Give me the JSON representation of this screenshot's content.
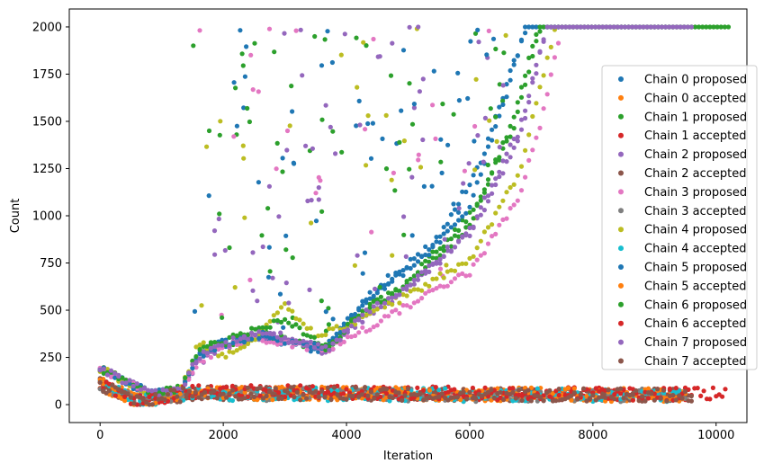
{
  "chart_data": {
    "type": "scatter",
    "xlabel": "Iteration",
    "ylabel": "Count",
    "xlim": [
      -500,
      10500
    ],
    "ylim": [
      -95,
      2095
    ],
    "x_ticks": [
      0,
      2000,
      4000,
      6000,
      8000,
      10000
    ],
    "y_ticks": [
      0,
      250,
      500,
      750,
      1000,
      1250,
      1500,
      1750,
      2000
    ],
    "x_tick_labels": [
      "0",
      "2000",
      "4000",
      "6000",
      "8000",
      "10000"
    ],
    "y_tick_labels": [
      "0",
      "250",
      "500",
      "750",
      "1000",
      "1250",
      "1500",
      "1750",
      "2000"
    ],
    "grid": false,
    "legend_position": "right",
    "series": [
      {
        "name": "Chain 0 proposed",
        "color": "#1f77b4",
        "kind": "proposed",
        "trend": [
          [
            0,
            190
          ],
          [
            800,
            60
          ],
          [
            1300,
            70
          ],
          [
            1600,
            250
          ],
          [
            2000,
            320
          ],
          [
            2500,
            350
          ],
          [
            3000,
            330
          ],
          [
            3500,
            290
          ],
          [
            3800,
            360
          ],
          [
            4500,
            600
          ],
          [
            5500,
            880
          ],
          [
            6200,
            1300
          ],
          [
            6700,
            1800
          ],
          [
            6950,
            2000
          ],
          [
            9500,
            2000
          ]
        ]
      },
      {
        "name": "Chain 0 accepted",
        "color": "#ff7f0e",
        "kind": "accepted",
        "trend": [
          [
            0,
            110
          ],
          [
            600,
            20
          ],
          [
            1500,
            60
          ],
          [
            3000,
            60
          ],
          [
            6000,
            55
          ],
          [
            9500,
            50
          ]
        ]
      },
      {
        "name": "Chain 1 proposed",
        "color": "#2ca02c",
        "kind": "proposed",
        "trend": [
          [
            0,
            190
          ],
          [
            800,
            60
          ],
          [
            1300,
            80
          ],
          [
            1600,
            300
          ],
          [
            2000,
            320
          ],
          [
            2600,
            380
          ],
          [
            3000,
            340
          ],
          [
            3700,
            300
          ],
          [
            4200,
            480
          ],
          [
            5000,
            650
          ],
          [
            6000,
            1000
          ],
          [
            6700,
            1450
          ],
          [
            7150,
            2000
          ],
          [
            10150,
            2000
          ]
        ]
      },
      {
        "name": "Chain 1 accepted",
        "color": "#d62728",
        "kind": "accepted",
        "trend": [
          [
            0,
            110
          ],
          [
            600,
            20
          ],
          [
            1500,
            70
          ],
          [
            3000,
            65
          ],
          [
            6000,
            60
          ],
          [
            9500,
            55
          ]
        ]
      },
      {
        "name": "Chain 2 proposed",
        "color": "#9467bd",
        "kind": "proposed",
        "trend": [
          [
            0,
            195
          ],
          [
            800,
            60
          ],
          [
            1300,
            75
          ],
          [
            1600,
            220
          ],
          [
            2000,
            310
          ],
          [
            2500,
            360
          ],
          [
            3000,
            340
          ],
          [
            3700,
            280
          ],
          [
            4200,
            440
          ],
          [
            5000,
            620
          ],
          [
            6000,
            900
          ],
          [
            6800,
            1400
          ],
          [
            7250,
            2000
          ],
          [
            9600,
            2000
          ]
        ]
      },
      {
        "name": "Chain 2 accepted",
        "color": "#8c564b",
        "kind": "accepted",
        "trend": [
          [
            0,
            105
          ],
          [
            600,
            15
          ],
          [
            1500,
            60
          ],
          [
            3000,
            60
          ],
          [
            6000,
            55
          ],
          [
            9600,
            50
          ]
        ]
      },
      {
        "name": "Chain 3 proposed",
        "color": "#e377c2",
        "kind": "proposed",
        "trend": [
          [
            0,
            190
          ],
          [
            800,
            60
          ],
          [
            1300,
            70
          ],
          [
            1600,
            230
          ],
          [
            2000,
            300
          ],
          [
            2500,
            350
          ],
          [
            3000,
            330
          ],
          [
            3700,
            290
          ],
          [
            4300,
            400
          ],
          [
            5000,
            520
          ],
          [
            6000,
            700
          ],
          [
            6800,
            1100
          ],
          [
            7200,
            1550
          ],
          [
            7500,
            2000
          ],
          [
            9500,
            2000
          ]
        ]
      },
      {
        "name": "Chain 3 accepted",
        "color": "#7f7f7f",
        "kind": "accepted",
        "trend": [
          [
            0,
            105
          ],
          [
            600,
            15
          ],
          [
            1500,
            55
          ],
          [
            3000,
            55
          ],
          [
            6000,
            50
          ],
          [
            9500,
            50
          ]
        ]
      },
      {
        "name": "Chain 4 proposed",
        "color": "#bcbd22",
        "kind": "proposed",
        "trend": [
          [
            0,
            190
          ],
          [
            800,
            60
          ],
          [
            1300,
            70
          ],
          [
            1600,
            330
          ],
          [
            2000,
            260
          ],
          [
            2400,
            320
          ],
          [
            3000,
            540
          ],
          [
            3500,
            360
          ],
          [
            4000,
            420
          ],
          [
            5000,
            580
          ],
          [
            6000,
            770
          ],
          [
            6800,
            1220
          ],
          [
            7150,
            1700
          ],
          [
            7400,
            2000
          ],
          [
            9500,
            2000
          ]
        ]
      },
      {
        "name": "Chain 4 accepted",
        "color": "#17becf",
        "kind": "accepted",
        "trend": [
          [
            0,
            105
          ],
          [
            600,
            15
          ],
          [
            1500,
            55
          ],
          [
            3000,
            55
          ],
          [
            6000,
            50
          ],
          [
            9500,
            50
          ]
        ]
      },
      {
        "name": "Chain 5 proposed",
        "color": "#1f77b4",
        "kind": "proposed",
        "trend": [
          [
            0,
            190
          ],
          [
            800,
            60
          ],
          [
            1300,
            75
          ],
          [
            1600,
            260
          ],
          [
            2000,
            330
          ],
          [
            2500,
            360
          ],
          [
            3000,
            340
          ],
          [
            3700,
            300
          ],
          [
            4300,
            560
          ],
          [
            5200,
            760
          ],
          [
            6000,
            1050
          ],
          [
            6600,
            1650
          ],
          [
            6900,
            2000
          ],
          [
            9500,
            2000
          ]
        ]
      },
      {
        "name": "Chain 5 accepted",
        "color": "#ff7f0e",
        "kind": "accepted",
        "trend": [
          [
            0,
            110
          ],
          [
            600,
            20
          ],
          [
            1500,
            60
          ],
          [
            3000,
            60
          ],
          [
            6000,
            55
          ],
          [
            9500,
            50
          ]
        ]
      },
      {
        "name": "Chain 6 proposed",
        "color": "#2ca02c",
        "kind": "proposed",
        "trend": [
          [
            0,
            190
          ],
          [
            800,
            60
          ],
          [
            1300,
            80
          ],
          [
            1600,
            280
          ],
          [
            2000,
            330
          ],
          [
            2500,
            400
          ],
          [
            3000,
            450
          ],
          [
            3700,
            300
          ],
          [
            4300,
            500
          ],
          [
            5000,
            640
          ],
          [
            6000,
            950
          ],
          [
            6700,
            1500
          ],
          [
            7100,
            2000
          ],
          [
            10200,
            2000
          ]
        ]
      },
      {
        "name": "Chain 6 accepted",
        "color": "#d62728",
        "kind": "accepted",
        "trend": [
          [
            0,
            110
          ],
          [
            600,
            20
          ],
          [
            1500,
            70
          ],
          [
            3000,
            70
          ],
          [
            6000,
            60
          ],
          [
            10150,
            55
          ]
        ]
      },
      {
        "name": "Chain 7 proposed",
        "color": "#9467bd",
        "kind": "proposed",
        "trend": [
          [
            0,
            195
          ],
          [
            800,
            60
          ],
          [
            1300,
            75
          ],
          [
            1600,
            260
          ],
          [
            2000,
            320
          ],
          [
            2500,
            370
          ],
          [
            3000,
            350
          ],
          [
            3700,
            290
          ],
          [
            4200,
            460
          ],
          [
            5000,
            630
          ],
          [
            6000,
            920
          ],
          [
            6800,
            1450
          ],
          [
            7250,
            2000
          ],
          [
            9600,
            2000
          ]
        ]
      },
      {
        "name": "Chain 7 accepted",
        "color": "#8c564b",
        "kind": "accepted",
        "trend": [
          [
            0,
            105
          ],
          [
            600,
            15
          ],
          [
            1500,
            60
          ],
          [
            3000,
            60
          ],
          [
            6000,
            55
          ],
          [
            9600,
            50
          ]
        ]
      }
    ]
  }
}
